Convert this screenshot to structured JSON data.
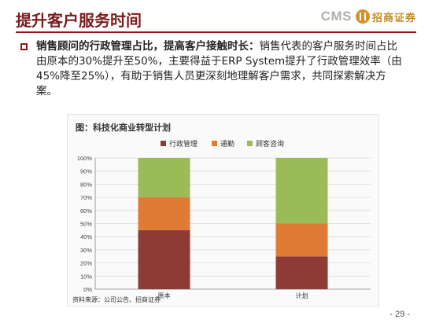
{
  "slide": {
    "title": "提升客户服务时间",
    "bullet_lead": "销售顾问的行政管理占比，提高客户接触时长：",
    "bullet_body": "销售代表的客户服务时间占比由原本的30%提升至50%，主要得益于ERP System提升了行政管理效率（由45%降至25%），有助于销售人员更深刻地理解客户需求，共同探索解决方案。",
    "page_number": "- 29 -"
  },
  "logo": {
    "latin": "CMS",
    "chinese": "招商证券"
  },
  "chart_data": {
    "type": "bar",
    "stacked": true,
    "title": "图：科技化商业转型计划",
    "source": "资料来源：公司公告、招商证券",
    "categories": [
      "原本",
      "计划"
    ],
    "series": [
      {
        "name": "行政管理",
        "color": "#8e3b35",
        "values": [
          45,
          25
        ]
      },
      {
        "name": "通勤",
        "color": "#e07b35",
        "values": [
          25,
          25
        ]
      },
      {
        "name": "顾客咨询",
        "color": "#9bbb59",
        "values": [
          30,
          50
        ]
      }
    ],
    "ylim": [
      0,
      100
    ],
    "y_ticks": [
      "0%",
      "10%",
      "20%",
      "30%",
      "40%",
      "50%",
      "60%",
      "70%",
      "80%",
      "90%",
      "100%"
    ],
    "grid": true,
    "legend_position": "top"
  }
}
